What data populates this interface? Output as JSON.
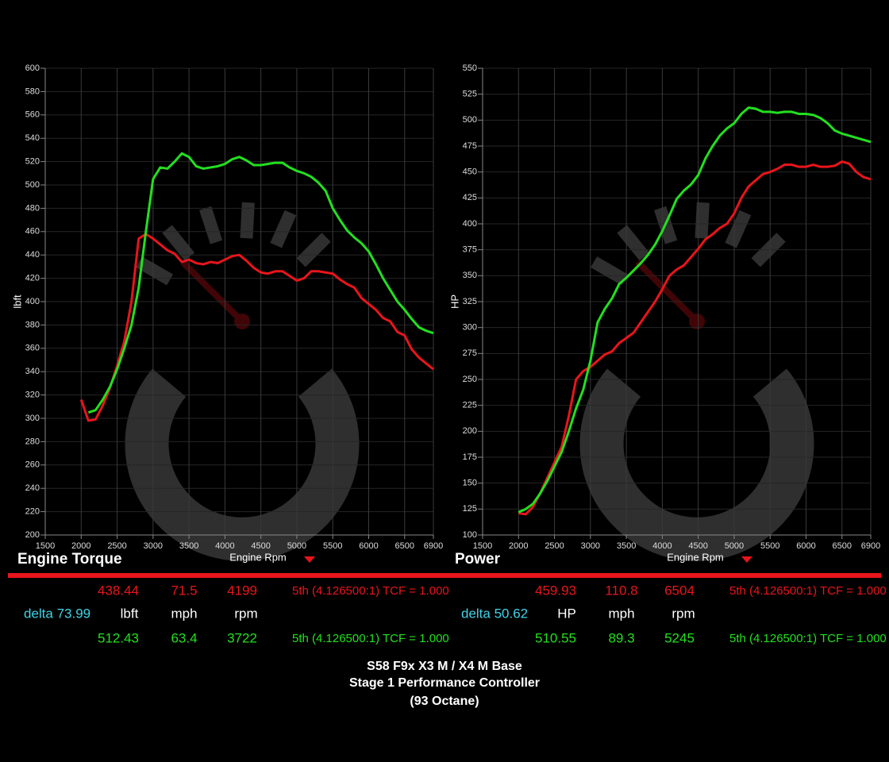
{
  "chart_data": [
    {
      "type": "line",
      "title": "Engine Torque",
      "xlabel": "Engine Rpm",
      "ylabel": "lbft",
      "xlim": [
        1500,
        6900
      ],
      "xticks": [
        1500,
        2000,
        2500,
        3000,
        3500,
        4000,
        4500,
        5000,
        5500,
        6000,
        6500,
        6900
      ],
      "ylim": [
        200,
        600
      ],
      "yticks": [
        200,
        220,
        240,
        260,
        280,
        300,
        320,
        340,
        360,
        380,
        400,
        420,
        440,
        460,
        480,
        500,
        520,
        540,
        560,
        580,
        600
      ],
      "grid": true,
      "x": [
        2000,
        2100,
        2200,
        2300,
        2400,
        2500,
        2600,
        2700,
        2800,
        2900,
        3000,
        3100,
        3200,
        3300,
        3400,
        3500,
        3600,
        3700,
        3800,
        3900,
        4000,
        4100,
        4200,
        4300,
        4400,
        4500,
        4600,
        4700,
        4800,
        4900,
        5000,
        5100,
        5200,
        5300,
        5400,
        5500,
        5600,
        5700,
        5800,
        5900,
        6000,
        6100,
        6200,
        6300,
        6400,
        6500,
        6600,
        6700,
        6800,
        6900
      ],
      "series": [
        {
          "color": "#e8151b",
          "values": [
            316,
            298,
            299,
            311,
            326,
            345,
            366,
            400,
            454,
            458,
            454,
            449,
            444,
            441,
            434,
            436,
            433,
            432,
            434,
            433,
            436,
            439,
            440,
            435,
            429,
            425,
            424,
            426,
            426,
            422,
            418,
            420,
            426,
            426,
            425,
            424,
            419,
            415,
            412,
            403,
            398,
            393,
            386,
            383,
            374,
            371,
            359,
            352,
            347,
            342
          ]
        },
        {
          "color": "#22e01f",
          "values": [
            null,
            305,
            307,
            316,
            327,
            342,
            360,
            380,
            412,
            460,
            505,
            515,
            514,
            520,
            527,
            524,
            516,
            514,
            515,
            516,
            518,
            522,
            524,
            521,
            517,
            517,
            518,
            519,
            519,
            515,
            512,
            510,
            507,
            502,
            495,
            480,
            470,
            461,
            455,
            450,
            443,
            432,
            420,
            410,
            400,
            393,
            385,
            378,
            375,
            373
          ]
        }
      ],
      "readout": [
        [
          "438.44",
          "71.5",
          "4199",
          "5th (4.126500:1) TCF = 1.000"
        ],
        [
          "delta 73.99",
          "lbft",
          "mph",
          "rpm"
        ],
        [
          "512.43",
          "63.4",
          "3722",
          "5th (4.126500:1) TCF = 1.000"
        ]
      ]
    },
    {
      "type": "line",
      "title": "Power",
      "xlabel": "Engine Rpm",
      "ylabel": "HP",
      "xlim": [
        1500,
        6900
      ],
      "xticks": [
        1500,
        2000,
        2500,
        3000,
        3500,
        4000,
        4500,
        5000,
        5500,
        6000,
        6500,
        6900
      ],
      "ylim": [
        100,
        550
      ],
      "yticks": [
        100,
        125,
        150,
        175,
        200,
        225,
        250,
        275,
        300,
        325,
        350,
        375,
        400,
        425,
        450,
        475,
        500,
        525,
        550
      ],
      "grid": true,
      "x": [
        2000,
        2100,
        2200,
        2300,
        2400,
        2500,
        2600,
        2700,
        2800,
        2900,
        3000,
        3100,
        3200,
        3300,
        3400,
        3500,
        3600,
        3700,
        3800,
        3900,
        4000,
        4100,
        4200,
        4300,
        4400,
        4500,
        4600,
        4700,
        4800,
        4900,
        5000,
        5100,
        5200,
        5300,
        5400,
        5500,
        5600,
        5700,
        5800,
        5900,
        6000,
        6100,
        6200,
        6300,
        6400,
        6500,
        6600,
        6700,
        6800,
        6900
      ],
      "series": [
        {
          "color": "#e8151b",
          "values": [
            121,
            120,
            127,
            140,
            155,
            170,
            185,
            215,
            250,
            258,
            262,
            268,
            274,
            277,
            285,
            290,
            295,
            305,
            315,
            325,
            337,
            350,
            356,
            360,
            368,
            376,
            385,
            390,
            396,
            400,
            410,
            425,
            436,
            442,
            448,
            450,
            453,
            457,
            457,
            455,
            455,
            457,
            455,
            455,
            456,
            460,
            458,
            450,
            445,
            443
          ]
        },
        {
          "color": "#22e01f",
          "values": [
            122,
            125,
            130,
            140,
            152,
            166,
            180,
            200,
            222,
            240,
            268,
            305,
            318,
            328,
            342,
            348,
            355,
            362,
            370,
            380,
            393,
            408,
            424,
            432,
            438,
            447,
            463,
            475,
            485,
            492,
            497,
            506,
            512,
            511,
            508,
            508,
            507,
            508,
            508,
            506,
            506,
            505,
            502,
            497,
            490,
            487,
            485,
            483,
            481,
            479
          ]
        }
      ],
      "readout": [
        [
          "459.93",
          "110.8",
          "6504",
          "5th (4.126500:1) TCF = 1.000"
        ],
        [
          "delta 50.62",
          "HP",
          "mph",
          "rpm"
        ],
        [
          "510.55",
          "89.3",
          "5245",
          "5th (4.126500:1) TCF = 1.000"
        ]
      ]
    }
  ],
  "footer": [
    "S58 F9x X3 M / X4 M Base",
    "Stage 1 Performance Controller",
    "(93 Octane)"
  ]
}
